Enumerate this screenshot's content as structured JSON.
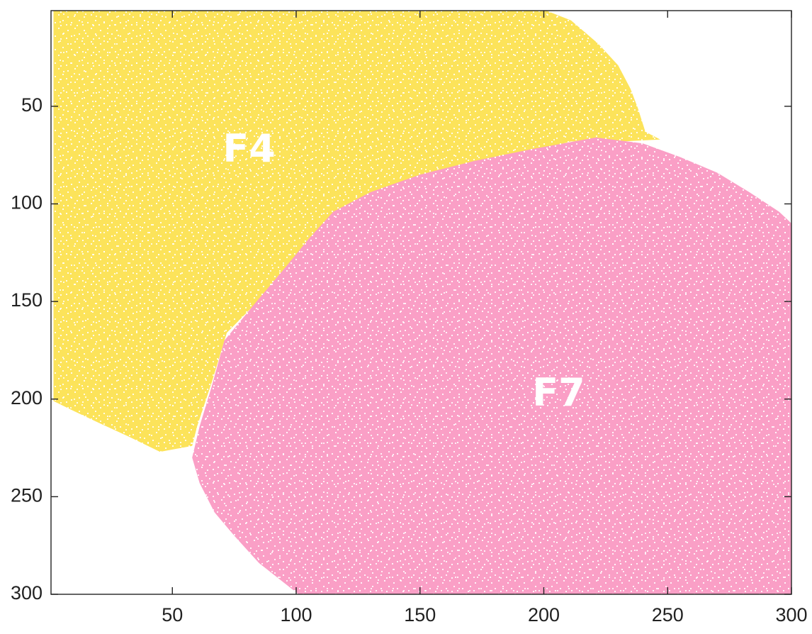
{
  "chart_data": {
    "type": "heatmap",
    "title": "",
    "xlabel": "",
    "ylabel": "",
    "xlim": [
      1,
      300
    ],
    "ylim": [
      1,
      300
    ],
    "y_inverted": true,
    "x_ticks": [
      50,
      100,
      150,
      200,
      250,
      300
    ],
    "y_ticks": [
      50,
      100,
      150,
      200,
      250,
      300
    ],
    "x_tick_labels": [
      "50",
      "100",
      "150",
      "200",
      "250",
      "300"
    ],
    "y_tick_labels": [
      "50",
      "100",
      "150",
      "200",
      "250",
      "300"
    ],
    "grid": false,
    "background_color": "#ffffff",
    "regions": [
      {
        "name": "F4",
        "label": "F4",
        "color": "#fce35a",
        "label_position": [
          81,
          73
        ],
        "boundary": [
          [
            2,
            1
          ],
          [
            201,
            1
          ],
          [
            211,
            6
          ],
          [
            222,
            18
          ],
          [
            230,
            29
          ],
          [
            235,
            41
          ],
          [
            238,
            51
          ],
          [
            241,
            63
          ],
          [
            247,
            67
          ],
          [
            232,
            68
          ],
          [
            211,
            68
          ],
          [
            190,
            75
          ],
          [
            170,
            80
          ],
          [
            150,
            86
          ],
          [
            130,
            95
          ],
          [
            115,
            105
          ],
          [
            105,
            118
          ],
          [
            97,
            131
          ],
          [
            86,
            148
          ],
          [
            72,
            166
          ],
          [
            66,
            191
          ],
          [
            60,
            214
          ],
          [
            58,
            224
          ],
          [
            45,
            227
          ],
          [
            32,
            219
          ],
          [
            20,
            212
          ],
          [
            10,
            206
          ],
          [
            2,
            201
          ]
        ]
      },
      {
        "name": "F7",
        "label": "F7",
        "color": "#fa9fc6",
        "label_position": [
          206,
          198
        ],
        "boundary": [
          [
            221,
            66
          ],
          [
            240,
            69
          ],
          [
            255,
            76
          ],
          [
            270,
            84
          ],
          [
            283,
            94
          ],
          [
            295,
            104
          ],
          [
            300,
            110
          ],
          [
            300,
            300
          ],
          [
            101,
            300
          ],
          [
            96,
            295
          ],
          [
            85,
            284
          ],
          [
            75,
            270
          ],
          [
            67,
            258
          ],
          [
            61,
            243
          ],
          [
            58,
            230
          ],
          [
            61,
            214
          ],
          [
            66,
            193
          ],
          [
            71,
            170
          ],
          [
            84,
            150
          ],
          [
            96,
            132
          ],
          [
            105,
            118
          ],
          [
            115,
            104
          ],
          [
            130,
            94
          ],
          [
            150,
            85
          ],
          [
            172,
            78
          ],
          [
            195,
            72
          ]
        ]
      }
    ]
  }
}
